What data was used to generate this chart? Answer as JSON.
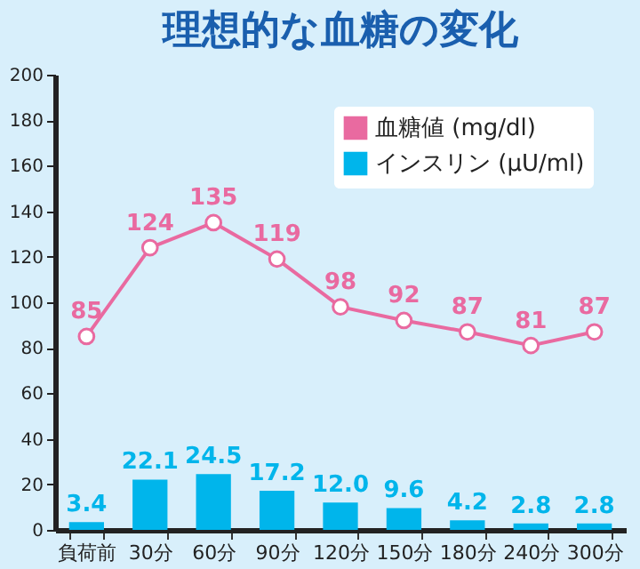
{
  "chart_data": {
    "type": "bar",
    "title": "理想的な血糖の変化",
    "categories": [
      "負荷前",
      "30分",
      "60分",
      "90分",
      "120分",
      "150分",
      "180分",
      "240分",
      "300分"
    ],
    "series": [
      {
        "name": "血糖値 (mg/dl)",
        "type": "line",
        "color": "#e96aa0",
        "values": [
          85,
          124,
          135,
          119,
          98,
          92,
          87,
          81,
          87
        ],
        "value_labels": [
          "85",
          "124",
          "135",
          "119",
          "98",
          "92",
          "87",
          "81",
          "87"
        ]
      },
      {
        "name": "インスリン (μU/ml)",
        "color": "#00b5eb",
        "values": [
          3.4,
          22.1,
          24.5,
          17.2,
          12.0,
          9.6,
          4.2,
          2.8,
          2.8
        ],
        "value_labels": [
          "3.4",
          "22.1",
          "24.5",
          "17.2",
          "12.0",
          "9.6",
          "4.2",
          "2.8",
          "2.8"
        ]
      }
    ],
    "ylim": [
      0,
      200
    ],
    "yticks": [
      0,
      20,
      40,
      60,
      80,
      100,
      120,
      140,
      160,
      180,
      200
    ],
    "grid": false,
    "legend": "top right",
    "marker": "circle",
    "line_style": "solid"
  }
}
